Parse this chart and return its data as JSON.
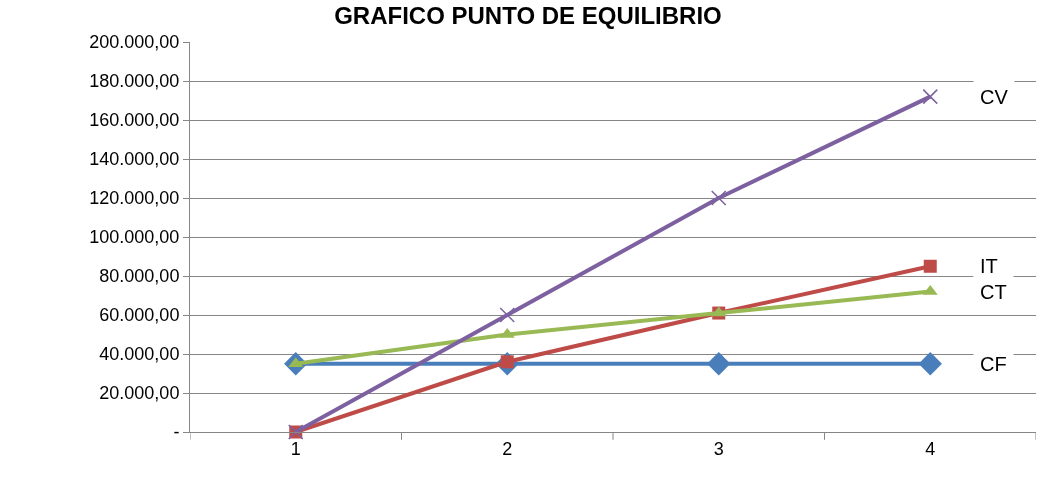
{
  "chart_data": {
    "type": "line",
    "title": "GRAFICO PUNTO DE EQUILIBRIO",
    "categories": [
      "1",
      "2",
      "3",
      "4"
    ],
    "series": [
      {
        "name": "CF",
        "color": "#4a7ebb",
        "marker": "diamond",
        "values": [
          35000,
          35000,
          35000,
          35000
        ]
      },
      {
        "name": "IT",
        "color": "#be4b48",
        "marker": "square",
        "values": [
          0,
          36000,
          61000,
          85000
        ]
      },
      {
        "name": "CT",
        "color": "#98b954",
        "marker": "triangle",
        "values": [
          35000,
          50000,
          61000,
          72000
        ]
      },
      {
        "name": "CV",
        "color": "#7d60a0",
        "marker": "cross",
        "values": [
          0,
          60000,
          120000,
          172000
        ]
      }
    ],
    "ylim": [
      0,
      200000
    ],
    "yticks": [
      {
        "value": 0,
        "label": "-"
      },
      {
        "value": 20000,
        "label": "20.000,00"
      },
      {
        "value": 40000,
        "label": "40.000,00"
      },
      {
        "value": 60000,
        "label": "60.000,00"
      },
      {
        "value": 80000,
        "label": "80.000,00"
      },
      {
        "value": 100000,
        "label": "100.000,00"
      },
      {
        "value": 120000,
        "label": "120.000,00"
      },
      {
        "value": 140000,
        "label": "140.000,00"
      },
      {
        "value": 160000,
        "label": "160.000,00"
      },
      {
        "value": 180000,
        "label": "180.000,00"
      },
      {
        "value": 200000,
        "label": "200.000,00"
      }
    ],
    "grid": "y",
    "legend": false
  }
}
